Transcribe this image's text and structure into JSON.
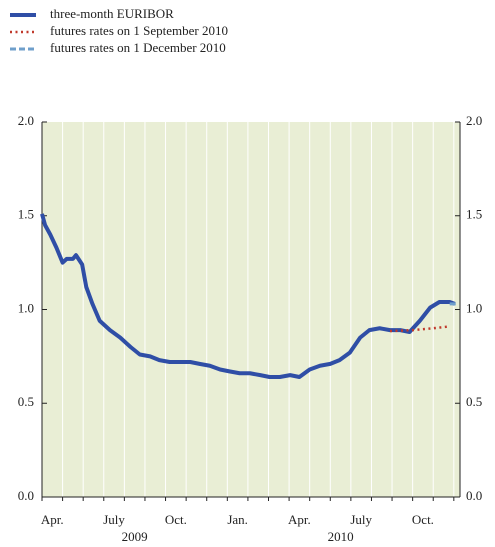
{
  "chart_data": {
    "type": "line",
    "categories": [
      "Apr.",
      null,
      null,
      "July",
      null,
      null,
      "Oct.",
      null,
      null,
      "Jan.",
      null,
      null,
      "Apr.",
      null,
      null,
      "July",
      null,
      null,
      "Oct.",
      null
    ],
    "years": [
      {
        "label": "2009",
        "value": 4.5
      },
      {
        "label": "2010",
        "value": 14.5
      }
    ],
    "xlim": [
      0,
      20.3
    ],
    "ylim": [
      0,
      2.0
    ],
    "yticks": [
      {
        "value": 0,
        "label": "0.0"
      },
      {
        "value": 0.5,
        "label": "0.5"
      },
      {
        "value": 1.0,
        "label": "1.0"
      },
      {
        "value": 1.5,
        "label": "1.5"
      },
      {
        "value": 2.0,
        "label": "2.0"
      }
    ],
    "grid": true,
    "series": [
      {
        "name": "three-month EURIBOR",
        "color": "#2f4ea6",
        "style": "solid",
        "x": [
          0,
          0.15,
          0.4,
          0.7,
          1.0,
          1.2,
          1.5,
          1.65,
          1.95,
          2.15,
          2.45,
          2.8,
          3.3,
          3.8,
          4.3,
          4.75,
          5.25,
          5.7,
          6.2,
          6.7,
          7.2,
          7.65,
          8.15,
          8.65,
          9.1,
          9.6,
          10.1,
          10.6,
          11.05,
          11.55,
          12.05,
          12.5,
          13.0,
          13.5,
          14.0,
          14.45,
          14.95,
          15.45,
          15.9,
          16.4,
          16.9,
          17.4,
          17.85,
          18.35,
          18.85,
          19.3,
          19.8,
          20.05
        ],
        "values": [
          1.51,
          1.45,
          1.4,
          1.33,
          1.25,
          1.27,
          1.27,
          1.29,
          1.24,
          1.12,
          1.03,
          0.94,
          0.89,
          0.85,
          0.8,
          0.76,
          0.75,
          0.73,
          0.72,
          0.72,
          0.72,
          0.71,
          0.7,
          0.68,
          0.67,
          0.66,
          0.66,
          0.65,
          0.64,
          0.64,
          0.65,
          0.64,
          0.68,
          0.7,
          0.71,
          0.73,
          0.77,
          0.85,
          0.89,
          0.9,
          0.89,
          0.89,
          0.88,
          0.94,
          1.01,
          1.04,
          1.04,
          1.03
        ]
      },
      {
        "name": "futures rates on 1 September 2010",
        "color": "#c0392b",
        "style": "dotted",
        "x": [
          16.9,
          18.0,
          19.0,
          19.8
        ],
        "values": [
          0.885,
          0.89,
          0.9,
          0.91
        ]
      },
      {
        "name": "futures rates on 1 December 2010",
        "color": "#6f9fcb",
        "style": "dashed",
        "x": [
          19.8,
          20.2
        ],
        "values": [
          1.03,
          1.03
        ]
      }
    ]
  }
}
